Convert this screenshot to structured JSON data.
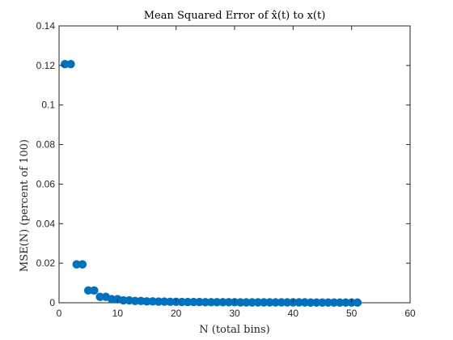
{
  "chart_data": {
    "type": "scatter",
    "title": "Mean Squared Error of x̂(t) to x(t)",
    "xlabel": "N (total bins)",
    "ylabel": "MSE(N) (percent of 100)",
    "xlim": [
      0,
      60
    ],
    "ylim": [
      0,
      0.14
    ],
    "xticks": [
      0,
      10,
      20,
      30,
      40,
      50,
      60
    ],
    "yticks": [
      0,
      0.02,
      0.04,
      0.06,
      0.08,
      0.1,
      0.12,
      0.14
    ],
    "xtick_labels": [
      "0",
      "10",
      "20",
      "30",
      "40",
      "50",
      "60"
    ],
    "ytick_labels": [
      "0",
      "0.02",
      "0.04",
      "0.06",
      "0.08",
      "0.1",
      "0.12",
      "0.14"
    ],
    "grid": false,
    "marker_color": "#0072BD",
    "series": [
      {
        "x": [
          1,
          2,
          3,
          4,
          5,
          6,
          7,
          8,
          9,
          10,
          11,
          12,
          13,
          14,
          15,
          16,
          17,
          18,
          19,
          20,
          21,
          22,
          23,
          24,
          25,
          26,
          27,
          28,
          29,
          30,
          31,
          32,
          33,
          34,
          35,
          36,
          37,
          38,
          39,
          40,
          41,
          42,
          43,
          44,
          45,
          46,
          47,
          48,
          49,
          50,
          51
        ],
        "y": [
          0.1207,
          0.1207,
          0.0194,
          0.0194,
          0.0062,
          0.0062,
          0.003,
          0.003,
          0.0018,
          0.0018,
          0.0012,
          0.0012,
          0.0009,
          0.0009,
          0.0007,
          0.0007,
          0.0006,
          0.0006,
          0.0005,
          0.0005,
          0.0004,
          0.0004,
          0.0004,
          0.0004,
          0.0003,
          0.0003,
          0.0003,
          0.0003,
          0.0003,
          0.0003,
          0.0002,
          0.0002,
          0.0002,
          0.0002,
          0.0002,
          0.0002,
          0.0002,
          0.0002,
          0.0002,
          0.0002,
          0.0002,
          0.0002,
          0.0001,
          0.0001,
          0.0001,
          0.0001,
          0.0001,
          0.0001,
          0.0001,
          0.0001,
          0.0001
        ]
      }
    ]
  }
}
